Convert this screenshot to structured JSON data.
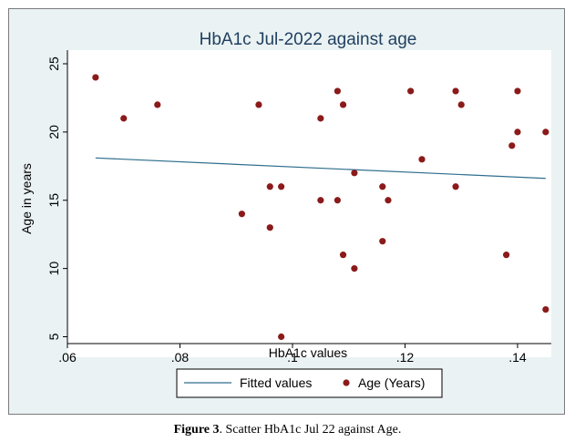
{
  "caption": {
    "label": "Figure 3",
    "text": ". Scatter HbA1c Jul 22 against Age."
  },
  "colors": {
    "background": "#eaf2f3",
    "plot_area": "#ffffff",
    "title": "#1f3f5f",
    "fit_line": "#2f6e8e",
    "points": "#8b1a1a"
  },
  "chart_data": {
    "type": "scatter",
    "title": "HbA1c Jul-2022 against age",
    "xlabel": "HbA1c values",
    "ylabel": "Age in years",
    "xlim": [
      0.06,
      0.146
    ],
    "ylim": [
      4.5,
      26
    ],
    "x_ticks": [
      0.06,
      0.08,
      0.1,
      0.12,
      0.14
    ],
    "x_tick_labels": [
      ".06",
      ".08",
      ".1",
      ".12",
      ".14"
    ],
    "y_ticks": [
      5,
      10,
      15,
      20,
      25
    ],
    "y_tick_labels": [
      "5",
      "10",
      "15",
      "20",
      "25"
    ],
    "grid": false,
    "legend_position": "bottom",
    "series": [
      {
        "name": "Fitted values",
        "kind": "line",
        "x": [
          0.065,
          0.145
        ],
        "y": [
          18.1,
          16.6
        ]
      },
      {
        "name": "Age (Years)",
        "kind": "points",
        "x": [
          0.065,
          0.07,
          0.076,
          0.091,
          0.094,
          0.096,
          0.096,
          0.098,
          0.098,
          0.105,
          0.105,
          0.108,
          0.108,
          0.109,
          0.109,
          0.111,
          0.111,
          0.116,
          0.116,
          0.117,
          0.121,
          0.123,
          0.129,
          0.129,
          0.13,
          0.138,
          0.139,
          0.14,
          0.14,
          0.145,
          0.145
        ],
        "y": [
          24,
          21,
          22,
          14,
          22,
          16,
          13,
          16,
          5,
          21,
          15,
          23,
          15,
          22,
          11,
          17,
          10,
          16,
          12,
          15,
          23,
          18,
          23,
          16,
          22,
          11,
          19,
          23,
          20,
          20,
          7
        ]
      }
    ]
  }
}
